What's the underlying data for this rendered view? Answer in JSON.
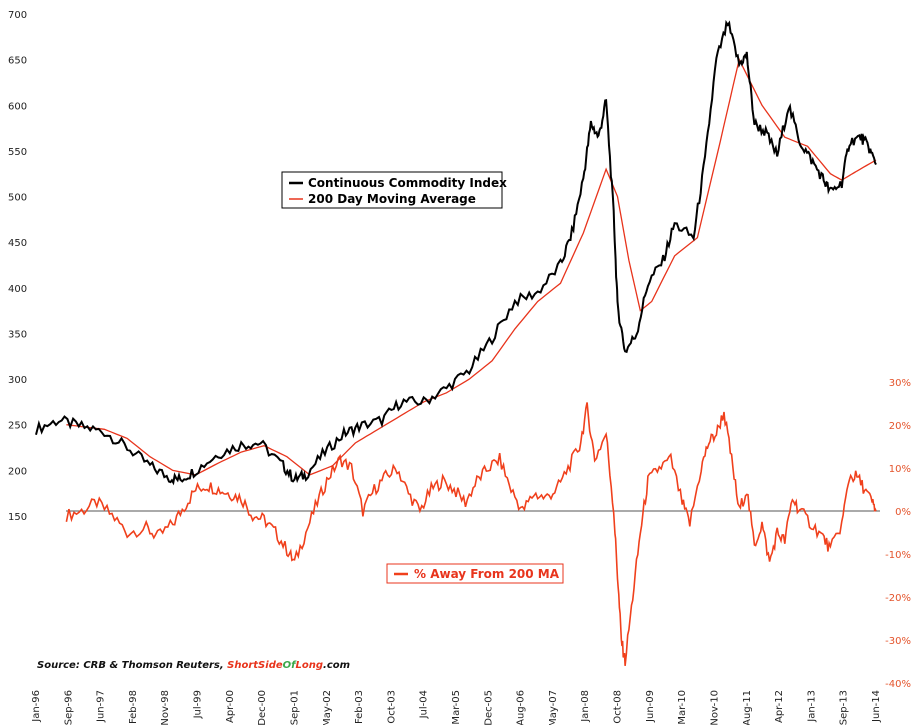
{
  "source": {
    "text": "Source: CRB & Thomson Reuters, ",
    "brand_part1": "ShortSide",
    "brand_part2": "Of",
    "brand_part3": "Long",
    "brand_part4": ".com"
  },
  "legend_top": {
    "items": [
      "Continuous Commodity Index",
      "200 Day Moving Average"
    ]
  },
  "legend_bottom": {
    "items": [
      "% Away From 200 MA"
    ]
  },
  "colors": {
    "index": "#000000",
    "ma": "#e8341c",
    "pct": "#f0401c",
    "zero_line": "#555555",
    "brand_red": "#e8341c",
    "brand_green": "#3aa84a"
  },
  "chart_data": {
    "type": "line",
    "x_tick_labels": [
      "Jan-96",
      "Sep-96",
      "Jun-97",
      "Feb-98",
      "Nov-98",
      "Jul-99",
      "Apr-00",
      "Dec-00",
      "Sep-01",
      "May-02",
      "Feb-03",
      "Oct-03",
      "Jul-04",
      "Mar-05",
      "Dec-05",
      "Aug-06",
      "May-07",
      "Jan-08",
      "Oct-08",
      "Jun-09",
      "Mar-10",
      "Nov-10",
      "Aug-11",
      "Apr-12",
      "Jan-13",
      "Sep-13",
      "Jun-14"
    ],
    "x_range": [
      "Jan-96",
      "Jun-14"
    ],
    "y_left": {
      "ticks": [
        150,
        200,
        250,
        300,
        350,
        400,
        450,
        500,
        550,
        600,
        650,
        700
      ]
    },
    "y_right": {
      "ticks": [
        "30%",
        "20%",
        "10%",
        "0%",
        "-10%",
        "-20%",
        "-30%",
        "-40%"
      ],
      "range": [
        -40,
        30
      ]
    },
    "series": [
      {
        "name": "Continuous Commodity Index",
        "axis": "left",
        "points": [
          [
            "Jan-96",
            245
          ],
          [
            "Jul-96",
            255
          ],
          [
            "Jan-97",
            248
          ],
          [
            "Jul-97",
            242
          ],
          [
            "Jan-98",
            225
          ],
          [
            "Jul-98",
            205
          ],
          [
            "Dec-98",
            192
          ],
          [
            "Mar-99",
            190
          ],
          [
            "Jul-99",
            200
          ],
          [
            "Jan-00",
            218
          ],
          [
            "Jul-00",
            228
          ],
          [
            "Dec-00",
            230
          ],
          [
            "Jun-01",
            205
          ],
          [
            "Sep-01",
            190
          ],
          [
            "Dec-01",
            195
          ],
          [
            "May-02",
            220
          ],
          [
            "Oct-02",
            240
          ],
          [
            "Feb-03",
            248
          ],
          [
            "Aug-03",
            255
          ],
          [
            "Jan-04",
            275
          ],
          [
            "Jul-04",
            275
          ],
          [
            "Jan-05",
            290
          ],
          [
            "Jul-05",
            310
          ],
          [
            "Jan-06",
            345
          ],
          [
            "Jul-06",
            385
          ],
          [
            "Jan-07",
            395
          ],
          [
            "Jul-07",
            425
          ],
          [
            "Oct-07",
            460
          ],
          [
            "Jan-08",
            520
          ],
          [
            "Mar-08",
            580
          ],
          [
            "May-08",
            565
          ],
          [
            "Jul-08",
            605
          ],
          [
            "Sep-08",
            480
          ],
          [
            "Oct-08",
            380
          ],
          [
            "Dec-08",
            330
          ],
          [
            "Mar-09",
            350
          ],
          [
            "Jun-09",
            405
          ],
          [
            "Oct-09",
            430
          ],
          [
            "Jan-10",
            470
          ],
          [
            "Jun-10",
            455
          ],
          [
            "Sep-10",
            540
          ],
          [
            "Dec-10",
            650
          ],
          [
            "Mar-11",
            690
          ],
          [
            "Jun-11",
            645
          ],
          [
            "Aug-11",
            655
          ],
          [
            "Oct-11",
            580
          ],
          [
            "Jan-12",
            570
          ],
          [
            "Apr-12",
            545
          ],
          [
            "Jul-12",
            600
          ],
          [
            "Oct-12",
            560
          ],
          [
            "Jan-13",
            540
          ],
          [
            "Apr-13",
            520
          ],
          [
            "Jun-13",
            505
          ],
          [
            "Sep-13",
            515
          ],
          [
            "Nov-13",
            560
          ],
          [
            "Feb-14",
            565
          ],
          [
            "Apr-14",
            555
          ],
          [
            "Jun-14",
            535
          ]
        ]
      },
      {
        "name": "200 Day Moving Average",
        "axis": "left",
        "points": [
          [
            "Sep-96",
            250
          ],
          [
            "Jan-97",
            248
          ],
          [
            "Jul-97",
            245
          ],
          [
            "Jan-98",
            235
          ],
          [
            "Jul-98",
            215
          ],
          [
            "Jan-99",
            200
          ],
          [
            "Jul-99",
            195
          ],
          [
            "Jan-00",
            208
          ],
          [
            "Jul-00",
            220
          ],
          [
            "Jan-01",
            227
          ],
          [
            "Jul-01",
            215
          ],
          [
            "Jan-02",
            195
          ],
          [
            "Jul-02",
            205
          ],
          [
            "Jan-03",
            230
          ],
          [
            "Jul-03",
            245
          ],
          [
            "Jan-04",
            260
          ],
          [
            "Jul-04",
            275
          ],
          [
            "Jan-05",
            285
          ],
          [
            "Jul-05",
            300
          ],
          [
            "Jan-06",
            320
          ],
          [
            "Jul-06",
            355
          ],
          [
            "Jan-07",
            385
          ],
          [
            "Jul-07",
            405
          ],
          [
            "Jan-08",
            460
          ],
          [
            "Jul-08",
            530
          ],
          [
            "Oct-08",
            500
          ],
          [
            "Jan-09",
            430
          ],
          [
            "Apr-09",
            375
          ],
          [
            "Jul-09",
            385
          ],
          [
            "Jan-10",
            435
          ],
          [
            "Jul-10",
            455
          ],
          [
            "Jan-11",
            560
          ],
          [
            "Jun-11",
            650
          ],
          [
            "Dec-11",
            600
          ],
          [
            "Jun-12",
            565
          ],
          [
            "Dec-12",
            555
          ],
          [
            "Jun-13",
            525
          ],
          [
            "Sep-13",
            518
          ],
          [
            "Jan-14",
            528
          ],
          [
            "Jun-14",
            540
          ]
        ]
      },
      {
        "name": "% Away From 200 MA",
        "axis": "right",
        "points": [
          [
            "Sep-96",
            -1
          ],
          [
            "Jan-97",
            0
          ],
          [
            "May-97",
            2
          ],
          [
            "Sep-97",
            -1
          ],
          [
            "Jan-98",
            -5
          ],
          [
            "Jun-98",
            -4
          ],
          [
            "Sep-98",
            -6
          ],
          [
            "Jan-99",
            -3
          ],
          [
            "Apr-99",
            1
          ],
          [
            "Jul-99",
            5
          ],
          [
            "Oct-99",
            6
          ],
          [
            "Jan-00",
            5
          ],
          [
            "Apr-00",
            4
          ],
          [
            "Jul-00",
            3
          ],
          [
            "Oct-00",
            -1
          ],
          [
            "Jan-01",
            -2
          ],
          [
            "Apr-01",
            -5
          ],
          [
            "Jul-01",
            -9
          ],
          [
            "Sep-01",
            -12
          ],
          [
            "Dec-01",
            -5
          ],
          [
            "Mar-02",
            2
          ],
          [
            "Jun-02",
            8
          ],
          [
            "Sep-02",
            12
          ],
          [
            "Dec-02",
            10
          ],
          [
            "Mar-03",
            0
          ],
          [
            "Jun-03",
            5
          ],
          [
            "Sep-03",
            8
          ],
          [
            "Dec-03",
            10
          ],
          [
            "Mar-04",
            4
          ],
          [
            "Jun-04",
            0
          ],
          [
            "Sep-04",
            5
          ],
          [
            "Dec-04",
            7
          ],
          [
            "Mar-05",
            5
          ],
          [
            "Jun-05",
            2
          ],
          [
            "Sep-05",
            7
          ],
          [
            "Dec-05",
            10
          ],
          [
            "Mar-06",
            12
          ],
          [
            "Jun-06",
            5
          ],
          [
            "Sep-06",
            0
          ],
          [
            "Dec-06",
            4
          ],
          [
            "Mar-07",
            3
          ],
          [
            "Jun-07",
            5
          ],
          [
            "Sep-07",
            10
          ],
          [
            "Dec-07",
            15
          ],
          [
            "Feb-08",
            24
          ],
          [
            "Apr-08",
            12
          ],
          [
            "Jul-08",
            18
          ],
          [
            "Sep-08",
            0
          ],
          [
            "Oct-08",
            -15
          ],
          [
            "Nov-08",
            -30
          ],
          [
            "Dec-08",
            -35
          ],
          [
            "Feb-09",
            -20
          ],
          [
            "Apr-09",
            -5
          ],
          [
            "Jun-09",
            7
          ],
          [
            "Sep-09",
            10
          ],
          [
            "Dec-09",
            12
          ],
          [
            "Mar-10",
            2
          ],
          [
            "May-10",
            -3
          ],
          [
            "Aug-10",
            10
          ],
          [
            "Oct-10",
            16
          ],
          [
            "Dec-10",
            18
          ],
          [
            "Feb-11",
            23
          ],
          [
            "Apr-11",
            12
          ],
          [
            "Jun-11",
            0
          ],
          [
            "Aug-11",
            5
          ],
          [
            "Oct-11",
            -8
          ],
          [
            "Dec-11",
            -3
          ],
          [
            "Feb-12",
            -12
          ],
          [
            "Apr-12",
            -5
          ],
          [
            "Jun-12",
            -7
          ],
          [
            "Aug-12",
            3
          ],
          [
            "Oct-12",
            0
          ],
          [
            "Jan-13",
            -3
          ],
          [
            "Apr-13",
            -6
          ],
          [
            "Jun-13",
            -9
          ],
          [
            "Sep-13",
            -3
          ],
          [
            "Nov-13",
            8
          ],
          [
            "Jan-14",
            8
          ],
          [
            "Mar-14",
            5
          ],
          [
            "May-14",
            2
          ],
          [
            "Jun-14",
            0
          ]
        ]
      }
    ]
  }
}
